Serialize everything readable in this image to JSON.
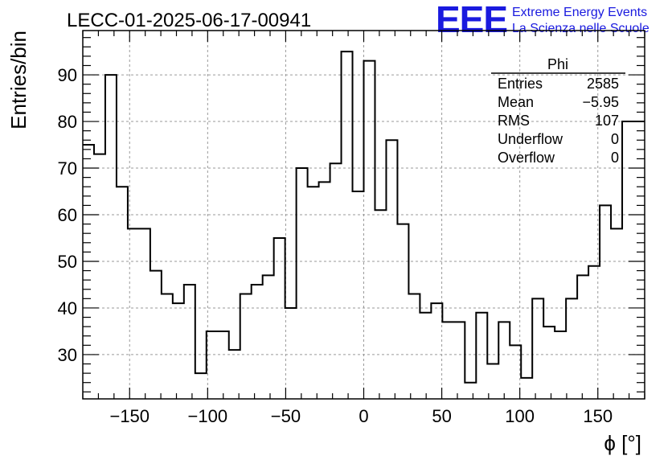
{
  "header": {
    "title": "LECC-01-2025-06-17-00941",
    "logo_letters": "EEE",
    "logo_line1": "Extreme Energy Events",
    "logo_line2": "La Scienza nelle Scuole",
    "logo_color": "#1a1adf"
  },
  "stats_box": {
    "name": "Phi",
    "rows": [
      {
        "label": "Entries",
        "value": "2585"
      },
      {
        "label": "Mean",
        "value": "−5.95"
      },
      {
        "label": "RMS",
        "value": "107"
      },
      {
        "label": "Underflow",
        "value": "0"
      },
      {
        "label": "Overflow",
        "value": "0"
      }
    ]
  },
  "chart_data": {
    "type": "bar",
    "histogram": true,
    "xlabel": "ϕ [°]",
    "ylabel": "Entries/bin",
    "xlim": [
      -180,
      180
    ],
    "ylim": [
      20.5,
      99.5
    ],
    "bin_width": 7.2,
    "bins_start": -180,
    "values": [
      75,
      73,
      90,
      66,
      57,
      57,
      48,
      43,
      41,
      45,
      26,
      35,
      35,
      31,
      43,
      45,
      47,
      55,
      40,
      70,
      66,
      67,
      71,
      95,
      65,
      93,
      61,
      76,
      58,
      43,
      39,
      41,
      37,
      37,
      24,
      39,
      28,
      37,
      32,
      25,
      42,
      36,
      35,
      42,
      47,
      49,
      62,
      57,
      80,
      80
    ],
    "x_ticks": [
      -150,
      -100,
      -50,
      0,
      50,
      100,
      150
    ],
    "x_tick_labels": [
      "−150",
      "−100",
      "−50",
      "0",
      "50",
      "100",
      "150"
    ],
    "y_ticks": [
      30,
      40,
      50,
      60,
      70,
      80,
      90
    ],
    "y_tick_labels": [
      "30",
      "40",
      "50",
      "60",
      "70",
      "80",
      "90"
    ],
    "grid": true,
    "line_color": "#000000"
  }
}
